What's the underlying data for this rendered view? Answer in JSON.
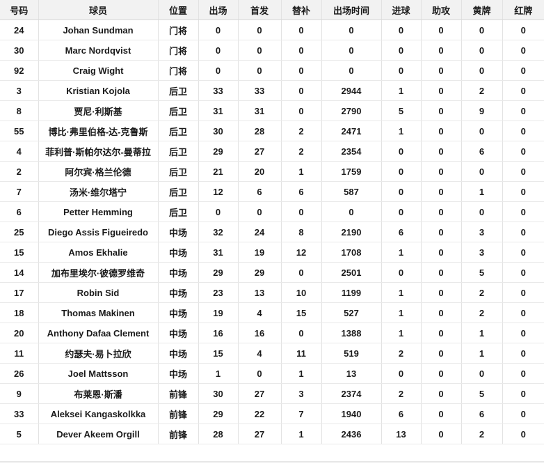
{
  "colors": {
    "header_bg": "#f2f2f2",
    "vertical_border": "#e2e2e2",
    "horizontal_border": "#e9e9e9",
    "header_border": "#d9d9d9",
    "text": "#1a1a1a",
    "divider": "#e6e6e6"
  },
  "table": {
    "column_keys": [
      "number",
      "player",
      "position",
      "appearances",
      "starts",
      "sub",
      "minutes",
      "goals",
      "assists",
      "yellow",
      "red"
    ],
    "headers": [
      "号码",
      "球员",
      "位置",
      "出场",
      "首发",
      "替补",
      "出场时间",
      "进球",
      "助攻",
      "黄牌",
      "红牌"
    ],
    "rows": [
      [
        "24",
        "Johan Sundman",
        "门将",
        "0",
        "0",
        "0",
        "0",
        "0",
        "0",
        "0",
        "0"
      ],
      [
        "30",
        "Marc Nordqvist",
        "门将",
        "0",
        "0",
        "0",
        "0",
        "0",
        "0",
        "0",
        "0"
      ],
      [
        "92",
        "Craig Wight",
        "门将",
        "0",
        "0",
        "0",
        "0",
        "0",
        "0",
        "0",
        "0"
      ],
      [
        "3",
        "Kristian Kojola",
        "后卫",
        "33",
        "33",
        "0",
        "2944",
        "1",
        "0",
        "2",
        "0"
      ],
      [
        "8",
        "贾尼·利斯基",
        "后卫",
        "31",
        "31",
        "0",
        "2790",
        "5",
        "0",
        "9",
        "0"
      ],
      [
        "55",
        "博比·弗里伯格-达-克鲁斯",
        "后卫",
        "30",
        "28",
        "2",
        "2471",
        "1",
        "0",
        "0",
        "0"
      ],
      [
        "4",
        "菲利普·斯帕尔达尔-曼蒂拉",
        "后卫",
        "29",
        "27",
        "2",
        "2354",
        "0",
        "0",
        "6",
        "0"
      ],
      [
        "2",
        "阿尔宾·格兰伦德",
        "后卫",
        "21",
        "20",
        "1",
        "1759",
        "0",
        "0",
        "0",
        "0"
      ],
      [
        "7",
        "汤米·维尔塔宁",
        "后卫",
        "12",
        "6",
        "6",
        "587",
        "0",
        "0",
        "1",
        "0"
      ],
      [
        "6",
        "Petter Hemming",
        "后卫",
        "0",
        "0",
        "0",
        "0",
        "0",
        "0",
        "0",
        "0"
      ],
      [
        "25",
        "Diego Assis Figueiredo",
        "中场",
        "32",
        "24",
        "8",
        "2190",
        "6",
        "0",
        "3",
        "0"
      ],
      [
        "15",
        "Amos Ekhalie",
        "中场",
        "31",
        "19",
        "12",
        "1708",
        "1",
        "0",
        "3",
        "0"
      ],
      [
        "14",
        "加布里埃尔·彼德罗维奇",
        "中场",
        "29",
        "29",
        "0",
        "2501",
        "0",
        "0",
        "5",
        "0"
      ],
      [
        "17",
        "Robin Sid",
        "中场",
        "23",
        "13",
        "10",
        "1199",
        "1",
        "0",
        "2",
        "0"
      ],
      [
        "18",
        "Thomas Makinen",
        "中场",
        "19",
        "4",
        "15",
        "527",
        "1",
        "0",
        "2",
        "0"
      ],
      [
        "20",
        "Anthony Dafaa Clement",
        "中场",
        "16",
        "16",
        "0",
        "1388",
        "1",
        "0",
        "1",
        "0"
      ],
      [
        "11",
        "约瑟夫·易卜拉欣",
        "中场",
        "15",
        "4",
        "11",
        "519",
        "2",
        "0",
        "1",
        "0"
      ],
      [
        "26",
        "Joel Mattsson",
        "中场",
        "1",
        "0",
        "1",
        "13",
        "0",
        "0",
        "0",
        "0"
      ],
      [
        "9",
        "布莱恩·斯潘",
        "前锋",
        "30",
        "27",
        "3",
        "2374",
        "2",
        "0",
        "5",
        "0"
      ],
      [
        "33",
        "Aleksei Kangaskolkka",
        "前锋",
        "29",
        "22",
        "7",
        "1940",
        "6",
        "0",
        "6",
        "0"
      ],
      [
        "5",
        "Dever Akeem Orgill",
        "前锋",
        "28",
        "27",
        "1",
        "2436",
        "13",
        "0",
        "2",
        "0"
      ]
    ]
  }
}
